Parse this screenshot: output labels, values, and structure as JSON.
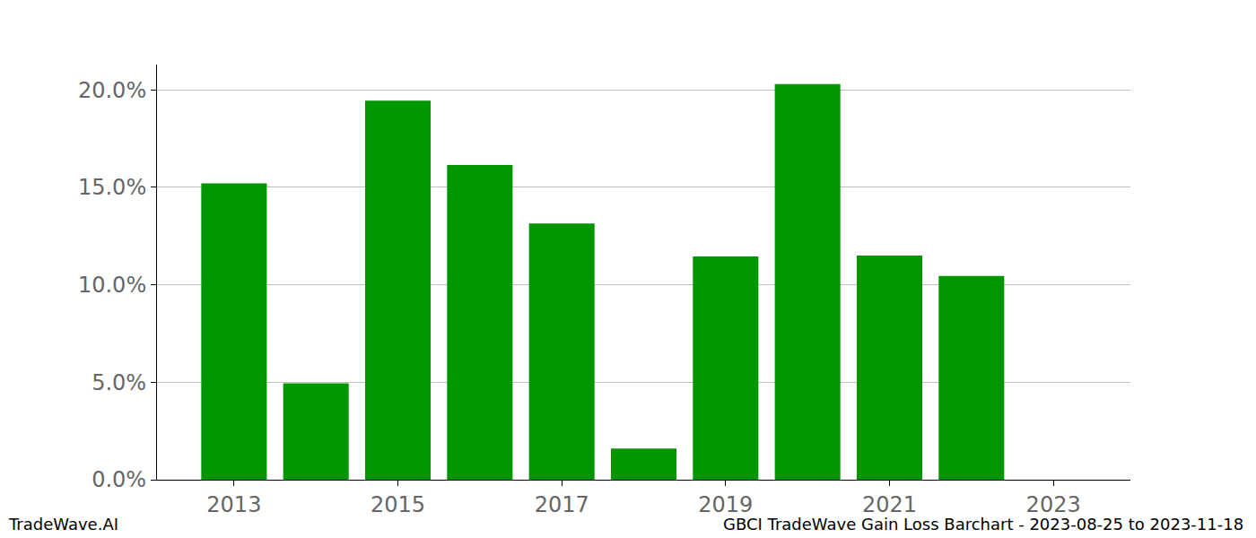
{
  "chart_data": {
    "type": "bar",
    "x": [
      2013,
      2014,
      2015,
      2016,
      2017,
      2018,
      2019,
      2020,
      2021,
      2022,
      2023
    ],
    "values": [
      15.2,
      4.95,
      19.45,
      16.15,
      13.15,
      1.6,
      11.45,
      20.3,
      11.5,
      10.45,
      0
    ],
    "color": "#009600",
    "xlim": [
      2012.06,
      2023.94
    ],
    "xticks": [
      2013,
      2015,
      2017,
      2019,
      2021,
      2023
    ],
    "ylim": [
      0,
      21.3
    ],
    "yticks": [
      {
        "value": 0,
        "label": "0.0%"
      },
      {
        "value": 5,
        "label": "5.0%"
      },
      {
        "value": 10,
        "label": "10.0%"
      },
      {
        "value": 15,
        "label": "15.0%"
      },
      {
        "value": 20,
        "label": "20.0%"
      }
    ],
    "grid": true,
    "annotations": [
      "TradeWave.AI",
      "GBCI TradeWave Gain Loss Barchart - 2023-08-25 to 2023-11-18"
    ]
  }
}
